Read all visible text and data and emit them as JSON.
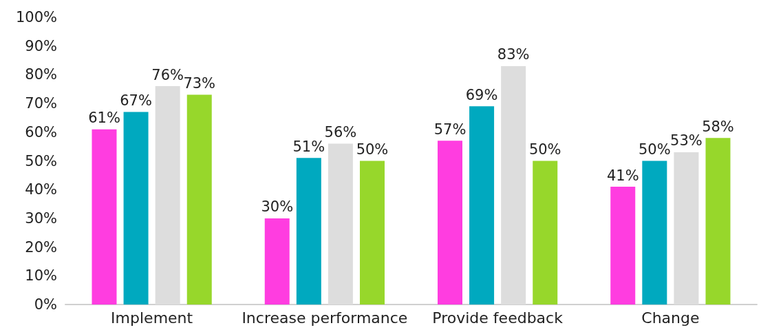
{
  "chart_data": {
    "type": "bar",
    "categories": [
      "Implement",
      "Increase performance",
      "Provide feedback",
      "Change"
    ],
    "series": [
      {
        "color": "#ff3de0",
        "values": [
          61,
          30,
          57,
          41
        ],
        "value_labels": [
          "61%",
          "30%",
          "57%",
          "41%"
        ]
      },
      {
        "color": "#00a9bf",
        "values": [
          67,
          51,
          69,
          50
        ],
        "value_labels": [
          "67%",
          "51%",
          "69%",
          "50%"
        ]
      },
      {
        "color": "#dddddd",
        "values": [
          76,
          56,
          83,
          53
        ],
        "value_labels": [
          "76%",
          "56%",
          "83%",
          "53%"
        ]
      },
      {
        "color": "#97d72b",
        "values": [
          73,
          50,
          50,
          58
        ],
        "value_labels": [
          "73%",
          "50%",
          "50%",
          "58%"
        ]
      }
    ],
    "ylim": [
      0,
      100
    ],
    "yticks": [
      {
        "value": 0,
        "label": "0%"
      },
      {
        "value": 10,
        "label": "10%"
      },
      {
        "value": 20,
        "label": "20%"
      },
      {
        "value": 30,
        "label": "30%"
      },
      {
        "value": 40,
        "label": "40%"
      },
      {
        "value": 50,
        "label": "50%"
      },
      {
        "value": 60,
        "label": "60%"
      },
      {
        "value": 70,
        "label": "70%"
      },
      {
        "value": 80,
        "label": "80%"
      },
      {
        "value": 90,
        "label": "90%"
      },
      {
        "value": 100,
        "label": "100%"
      }
    ],
    "grid": false
  }
}
